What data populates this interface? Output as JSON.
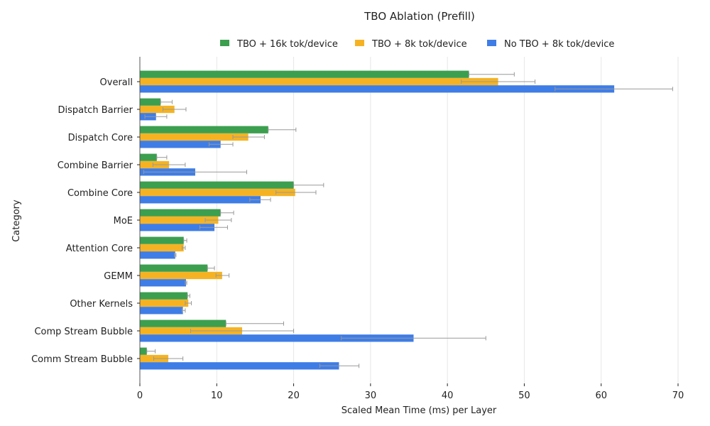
{
  "chart_data": {
    "type": "bar",
    "orientation": "horizontal",
    "title": "TBO Ablation (Prefill)",
    "xlabel": "Scaled Mean Time (ms) per Layer",
    "ylabel": "Category",
    "xlim": [
      0,
      70
    ],
    "xticks": [
      0,
      10,
      20,
      30,
      40,
      50,
      60,
      70
    ],
    "grid": "vertical",
    "legend_position": "top-center",
    "categories": [
      "Overall",
      "Dispatch Barrier",
      "Dispatch Core",
      "Combine Barrier",
      "Combine Core",
      "MoE",
      "Attention Core",
      "GEMM",
      "Other Kernels",
      "Comp Stream Bubble",
      "Comm Stream Bubble"
    ],
    "series": [
      {
        "name": "TBO + 16k tok/device",
        "color": "#3c9f4f",
        "values": [
          42.8,
          2.7,
          16.7,
          2.2,
          20.0,
          10.5,
          5.7,
          8.8,
          6.2,
          11.2,
          0.9
        ],
        "error_low": [
          42.8,
          2.7,
          16.7,
          2.2,
          20.0,
          10.5,
          5.7,
          8.8,
          6.2,
          11.2,
          0.9
        ],
        "error_high": [
          48.7,
          4.2,
          20.3,
          3.5,
          23.9,
          12.2,
          6.1,
          9.7,
          6.5,
          18.7,
          2.0
        ]
      },
      {
        "name": "TBO + 8k tok/device",
        "color": "#f5b324",
        "values": [
          46.6,
          4.5,
          14.1,
          3.8,
          20.2,
          10.2,
          5.7,
          10.7,
          6.3,
          13.3,
          3.7
        ],
        "error_low": [
          41.8,
          3.0,
          12.1,
          1.7,
          17.7,
          8.5,
          5.5,
          9.9,
          5.9,
          6.6,
          1.8
        ],
        "error_high": [
          51.4,
          6.0,
          16.2,
          5.9,
          22.9,
          11.9,
          5.9,
          11.6,
          6.7,
          20.0,
          5.6
        ]
      },
      {
        "name": "No TBO + 8k tok/device",
        "color": "#3f7de6",
        "values": [
          61.7,
          2.1,
          10.5,
          7.2,
          15.7,
          9.7,
          4.6,
          6.0,
          5.6,
          35.6,
          25.9
        ],
        "error_low": [
          54.0,
          0.65,
          9.0,
          0.5,
          14.3,
          7.8,
          4.5,
          5.9,
          5.5,
          26.2,
          23.4
        ],
        "error_high": [
          69.3,
          3.5,
          12.1,
          13.9,
          17.0,
          11.4,
          4.7,
          6.1,
          5.9,
          45.0,
          28.5
        ]
      }
    ]
  }
}
